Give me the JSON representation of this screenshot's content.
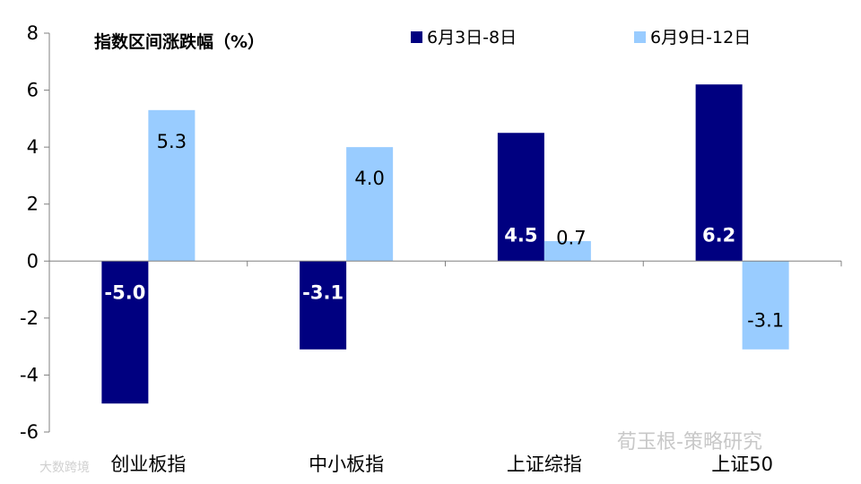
{
  "chart_data": {
    "type": "bar",
    "title": "指数区间涨跌幅（%）",
    "categories": [
      "创业板指",
      "中小板指",
      "上证综指",
      "上证50"
    ],
    "series": [
      {
        "name": "6月3日-8日",
        "values": [
          -5.0,
          -3.1,
          4.5,
          6.2
        ],
        "color": "#000080",
        "labels": [
          "-5.0",
          "-3.1",
          "4.5",
          "6.2"
        ]
      },
      {
        "name": "6月9日-12日",
        "values": [
          5.3,
          4.0,
          0.7,
          -3.1
        ],
        "color": "#99ccff",
        "labels": [
          "5.3",
          "4.0",
          "0.7",
          "-3.1"
        ]
      }
    ],
    "ylim": [
      -6,
      8
    ],
    "yticks": [
      "-6",
      "-4",
      "-2",
      "0",
      "2",
      "4",
      "6",
      "8"
    ],
    "yticks_values": [
      -6,
      -4,
      -2,
      0,
      2,
      4,
      6,
      8
    ],
    "grid": false,
    "legend_position": "top"
  },
  "watermark": {
    "main": "荀玉根-策略研究",
    "corner": "大数跨境"
  }
}
